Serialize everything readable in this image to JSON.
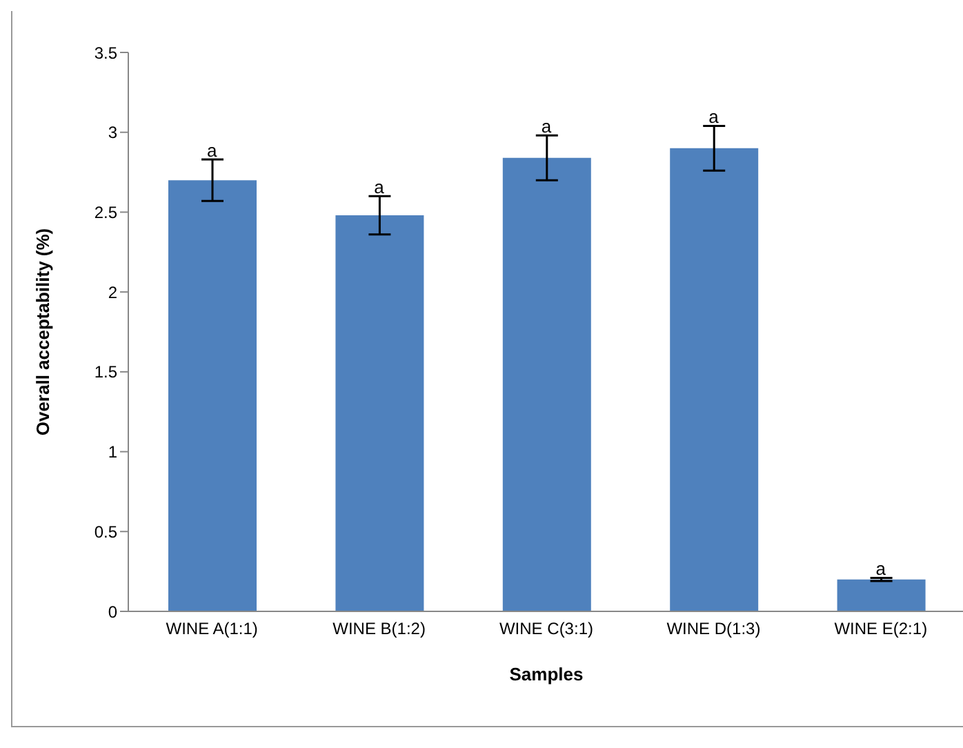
{
  "chart_data": {
    "type": "bar",
    "xlabel": "Samples",
    "ylabel": "Overall acceptability (%)",
    "categories": [
      "WINE A(1:1)",
      "WINE B(1:2)",
      "WINE C(3:1)",
      "WINE D(1:3)",
      "WINE E(2:1)"
    ],
    "values": [
      2.7,
      2.48,
      2.84,
      2.9,
      0.2
    ],
    "errors": [
      0.13,
      0.12,
      0.14,
      0.14,
      0.01
    ],
    "color": "#4f81bd",
    "ylim": [
      0,
      3.5
    ],
    "yticks": [
      0,
      0.5,
      1,
      1.5,
      2,
      2.5,
      3,
      3.5
    ],
    "grid": false,
    "legend": false,
    "annotations": [
      {
        "text": "a",
        "x": "WINE A(1:1)",
        "y": 2.83
      },
      {
        "text": "a",
        "x": "WINE B(1:2)",
        "y": 2.6
      },
      {
        "text": "a",
        "x": "WINE C(3:1)",
        "y": 2.98
      },
      {
        "text": "a",
        "x": "WINE D(1:3)",
        "y": 3.04
      },
      {
        "text": "a",
        "x": "WINE E(2:1)",
        "y": 0.21
      }
    ]
  }
}
